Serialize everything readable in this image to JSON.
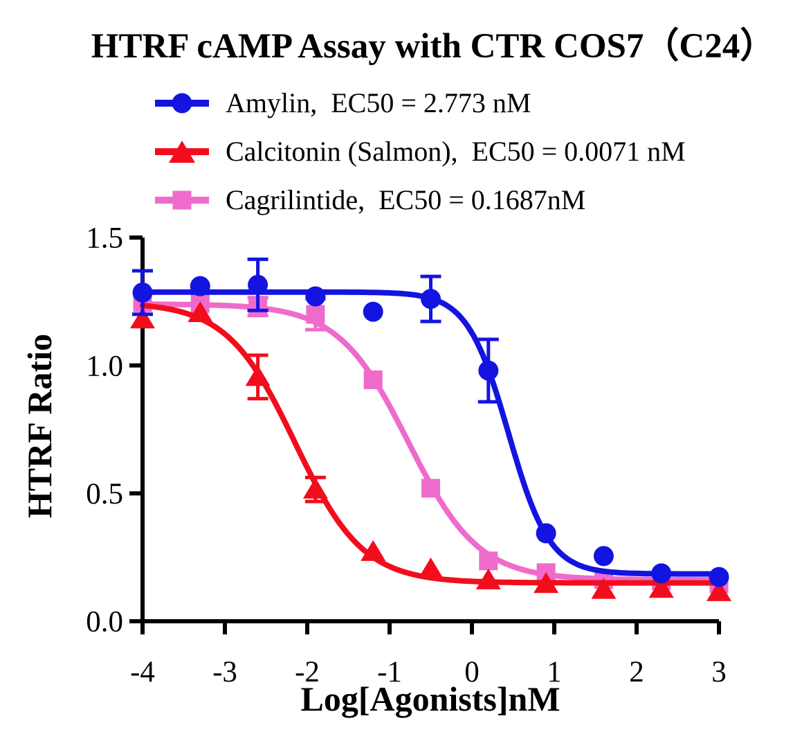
{
  "title": "HTRF cAMP Assay with CTR COS7（C24）",
  "chart_data": {
    "type": "scatter",
    "subtype": "dose-response curves with logistic fits and error bars",
    "title": "HTRF cAMP Assay with CTR COS7（C24）",
    "xlabel": "Log[Agonists]nM",
    "ylabel": "HTRF Ratio",
    "xlim": [
      -4,
      3
    ],
    "ylim": [
      0,
      1.5
    ],
    "grid": "off",
    "legend_position": "top-left, above plot area",
    "axis_color": "#000000",
    "background_color": "#FFFFFF",
    "xticks": [
      {
        "v": -4,
        "label": "-4"
      },
      {
        "v": -3,
        "label": "-3"
      },
      {
        "v": -2,
        "label": "-2"
      },
      {
        "v": -1,
        "label": "-1"
      },
      {
        "v": 0,
        "label": "0"
      },
      {
        "v": 1,
        "label": "1"
      },
      {
        "v": 2,
        "label": "2"
      },
      {
        "v": 3,
        "label": "3"
      }
    ],
    "yticks": [
      {
        "v": 0,
        "label": "0.0"
      },
      {
        "v": 0.5,
        "label": "0.5"
      },
      {
        "v": 1,
        "label": "1.0"
      },
      {
        "v": 1.5,
        "label": "1.5"
      }
    ],
    "series": [
      {
        "name": "Amylin",
        "legend_label": "Amylin,  EC50 = 2.773 nM",
        "ec50_nM": 2.773,
        "color": "#1414E0",
        "marker": "circle",
        "x": [
          -4,
          -3.3,
          -2.6,
          -1.9,
          -1.2,
          -0.5,
          0.2,
          0.9,
          1.6,
          2.3,
          3
        ],
        "y": [
          1.285,
          1.31,
          1.315,
          1.27,
          1.21,
          1.26,
          0.98,
          0.344,
          0.255,
          0.187,
          0.173
        ],
        "err": [
          0.085,
          0,
          0.1,
          0,
          0,
          0.088,
          0.122,
          0,
          0,
          0,
          0
        ],
        "fit": {
          "top": 1.287,
          "bottom": 0.185,
          "log_ec50": 0.443,
          "hill": 1.74
        }
      },
      {
        "name": "Calcitonin (Salmon)",
        "legend_label": "Calcitonin (Salmon),  EC50 = 0.0071 nM",
        "ec50_nM": 0.0071,
        "color": "#F20D1C",
        "marker": "triangle",
        "x": [
          -4,
          -3.3,
          -2.6,
          -1.9,
          -1.2,
          -0.5,
          0.2,
          0.9,
          1.6,
          2.3,
          3
        ],
        "y": [
          1.18,
          1.205,
          0.955,
          0.515,
          0.271,
          0.203,
          0.16,
          0.146,
          0.123,
          0.127,
          0.114
        ],
        "err": [
          0,
          0,
          0.085,
          0.047,
          0,
          0,
          0,
          0,
          0,
          0,
          0
        ],
        "fit": {
          "top": 1.247,
          "bottom": 0.15,
          "log_ec50": -2.149,
          "hill": 1.05
        }
      },
      {
        "name": "Cagrilintide",
        "legend_label": "Cagrilintide,  EC50 = 0.1687nM",
        "ec50_nM": 0.1687,
        "color": "#EF6BCB",
        "marker": "square",
        "x": [
          -4,
          -3.3,
          -2.6,
          -1.9,
          -1.2,
          -0.5,
          0.2,
          0.9,
          1.6,
          2.3,
          3
        ],
        "y": [
          1.245,
          1.242,
          1.23,
          1.2,
          0.944,
          0.52,
          0.236,
          0.19,
          0.163,
          0.158,
          0.146
        ],
        "err": [
          0,
          0,
          0.035,
          0.06,
          0,
          0,
          0,
          0,
          0,
          0,
          0
        ],
        "fit": {
          "top": 1.24,
          "bottom": 0.162,
          "log_ec50": -0.773,
          "hill": 1.02
        }
      }
    ]
  }
}
